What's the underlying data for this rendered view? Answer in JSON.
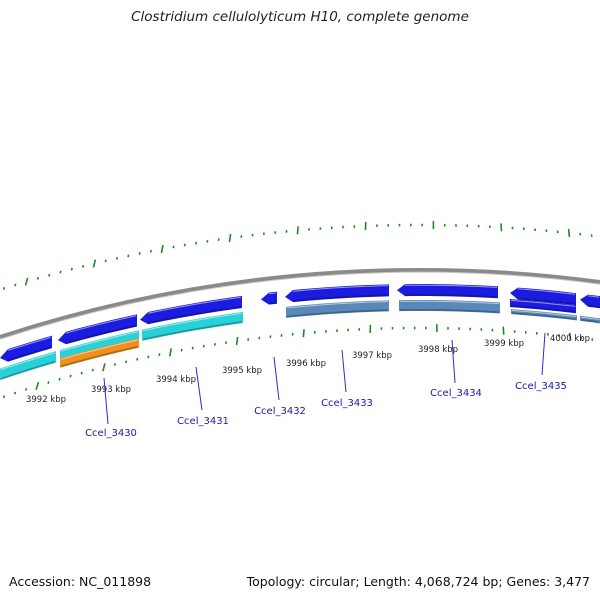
{
  "title": "Clostridium cellulolyticum H10, complete genome",
  "accession": "Accession: NC_011898",
  "genome_stats": "Topology: circular; Length: 4,068,724 bp; Genes: 3,477",
  "colors": {
    "backbone": "#8a8a8a",
    "cds_forward": "#1c1ce0",
    "cds_reverse": "#1c1ce0",
    "cds_track2": "#2ad0d8",
    "cds_track2_alt": "#5a88b8",
    "cds_orange": "#f09020",
    "tick": "#1e8a1e",
    "label_line": "#2a2ad0"
  },
  "ticks": [
    {
      "label": "3992 kbp"
    },
    {
      "label": "3993 kbp"
    },
    {
      "label": "3994 kbp"
    },
    {
      "label": "3995 kbp"
    },
    {
      "label": "3996 kbp"
    },
    {
      "label": "3997 kbp"
    },
    {
      "label": "3998 kbp"
    },
    {
      "label": "3999 kbp"
    },
    {
      "label": "4000 kbp"
    }
  ],
  "genes": [
    {
      "label": "Ccel_3430"
    },
    {
      "label": "Ccel_3431"
    },
    {
      "label": "Ccel_3432"
    },
    {
      "label": "Ccel_3433"
    },
    {
      "label": "Ccel_3434"
    },
    {
      "label": "Ccel_3435"
    }
  ]
}
